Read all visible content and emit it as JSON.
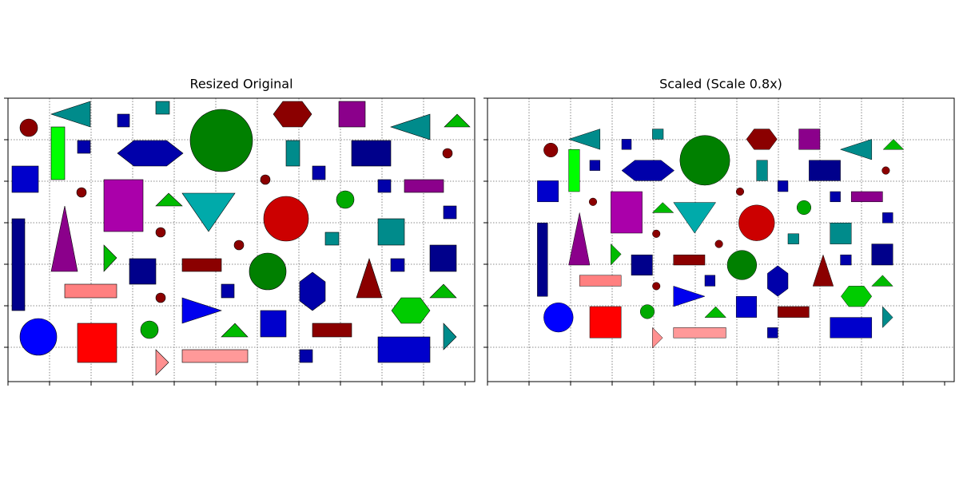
{
  "panels": [
    {
      "title": "Resized Original"
    },
    {
      "title": "Scaled (Scale 0.8x)"
    }
  ]
}
